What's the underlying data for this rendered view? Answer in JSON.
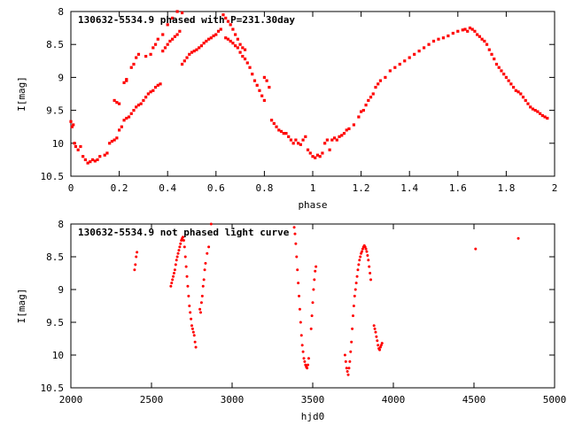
{
  "chart_data": [
    {
      "type": "scatter",
      "title": "130632-5534.9 phased with P=231.30day",
      "xlabel": "phase",
      "ylabel": "I[mag]",
      "xlim": [
        0,
        2
      ],
      "ylim": [
        8,
        10.5
      ],
      "y_inverted": true,
      "grid": false,
      "marker_color": "#ff0000",
      "xticks": [
        "0",
        "0.2",
        "0.4",
        "0.6",
        "0.8",
        "1",
        "1.2",
        "1.4",
        "1.6",
        "1.8",
        "2"
      ],
      "yticks": [
        "8",
        "8.5",
        "9",
        "9.5",
        "10",
        "10.5"
      ],
      "points": [
        [
          0.0,
          9.67
        ],
        [
          0.005,
          9.75
        ],
        [
          0.01,
          9.72
        ],
        [
          0.015,
          10.0
        ],
        [
          0.02,
          10.05
        ],
        [
          0.03,
          10.1
        ],
        [
          0.04,
          10.05
        ],
        [
          0.05,
          10.2
        ],
        [
          0.06,
          10.25
        ],
        [
          0.07,
          10.3
        ],
        [
          0.08,
          10.28
        ],
        [
          0.09,
          10.25
        ],
        [
          0.1,
          10.27
        ],
        [
          0.11,
          10.25
        ],
        [
          0.12,
          10.2
        ],
        [
          0.14,
          10.18
        ],
        [
          0.15,
          10.15
        ],
        [
          0.16,
          10.0
        ],
        [
          0.17,
          9.97
        ],
        [
          0.18,
          9.95
        ],
        [
          0.19,
          9.92
        ],
        [
          0.18,
          9.35
        ],
        [
          0.19,
          9.38
        ],
        [
          0.2,
          9.4
        ],
        [
          0.2,
          9.8
        ],
        [
          0.21,
          9.75
        ],
        [
          0.22,
          9.65
        ],
        [
          0.23,
          9.62
        ],
        [
          0.22,
          9.08
        ],
        [
          0.23,
          9.05
        ],
        [
          0.23,
          9.03
        ],
        [
          0.24,
          9.6
        ],
        [
          0.25,
          9.55
        ],
        [
          0.26,
          9.5
        ],
        [
          0.25,
          8.85
        ],
        [
          0.26,
          8.8
        ],
        [
          0.27,
          9.45
        ],
        [
          0.28,
          9.42
        ],
        [
          0.27,
          8.7
        ],
        [
          0.28,
          8.65
        ],
        [
          0.29,
          9.4
        ],
        [
          0.3,
          9.35
        ],
        [
          0.31,
          9.3
        ],
        [
          0.32,
          9.25
        ],
        [
          0.33,
          9.22
        ],
        [
          0.34,
          9.2
        ],
        [
          0.35,
          9.15
        ],
        [
          0.36,
          9.12
        ],
        [
          0.37,
          9.1
        ],
        [
          0.31,
          8.68
        ],
        [
          0.33,
          8.65
        ],
        [
          0.34,
          8.55
        ],
        [
          0.35,
          8.5
        ],
        [
          0.36,
          8.42
        ],
        [
          0.38,
          8.35
        ],
        [
          0.4,
          8.2
        ],
        [
          0.42,
          8.1
        ],
        [
          0.44,
          8.0
        ],
        [
          0.38,
          8.6
        ],
        [
          0.39,
          8.55
        ],
        [
          0.4,
          8.5
        ],
        [
          0.41,
          8.45
        ],
        [
          0.42,
          8.42
        ],
        [
          0.43,
          8.38
        ],
        [
          0.44,
          8.35
        ],
        [
          0.45,
          8.3
        ],
        [
          0.46,
          8.02
        ],
        [
          0.46,
          8.8
        ],
        [
          0.47,
          8.75
        ],
        [
          0.48,
          8.7
        ],
        [
          0.49,
          8.65
        ],
        [
          0.5,
          8.62
        ],
        [
          0.51,
          8.6
        ],
        [
          0.52,
          8.58
        ],
        [
          0.53,
          8.55
        ],
        [
          0.54,
          8.52
        ],
        [
          0.55,
          8.48
        ],
        [
          0.56,
          8.45
        ],
        [
          0.57,
          8.42
        ],
        [
          0.58,
          8.4
        ],
        [
          0.59,
          8.37
        ],
        [
          0.6,
          8.35
        ],
        [
          0.61,
          8.3
        ],
        [
          0.62,
          8.27
        ],
        [
          0.63,
          8.05
        ],
        [
          0.64,
          8.1
        ],
        [
          0.65,
          8.15
        ],
        [
          0.66,
          8.2
        ],
        [
          0.67,
          8.27
        ],
        [
          0.68,
          8.35
        ],
        [
          0.69,
          8.42
        ],
        [
          0.7,
          8.5
        ],
        [
          0.71,
          8.55
        ],
        [
          0.72,
          8.58
        ],
        [
          0.64,
          8.4
        ],
        [
          0.65,
          8.42
        ],
        [
          0.66,
          8.45
        ],
        [
          0.67,
          8.48
        ],
        [
          0.68,
          8.52
        ],
        [
          0.69,
          8.55
        ],
        [
          0.7,
          8.62
        ],
        [
          0.71,
          8.68
        ],
        [
          0.72,
          8.72
        ],
        [
          0.73,
          8.78
        ],
        [
          0.74,
          8.85
        ],
        [
          0.75,
          8.95
        ],
        [
          0.76,
          9.05
        ],
        [
          0.77,
          9.12
        ],
        [
          0.78,
          9.2
        ],
        [
          0.79,
          9.28
        ],
        [
          0.8,
          9.35
        ],
        [
          0.8,
          9.0
        ],
        [
          0.81,
          9.05
        ],
        [
          0.82,
          9.15
        ],
        [
          0.83,
          9.65
        ],
        [
          0.84,
          9.7
        ],
        [
          0.85,
          9.75
        ],
        [
          0.86,
          9.8
        ],
        [
          0.87,
          9.82
        ],
        [
          0.88,
          9.85
        ],
        [
          0.89,
          9.85
        ],
        [
          0.9,
          9.9
        ],
        [
          0.91,
          9.95
        ],
        [
          0.92,
          10.0
        ],
        [
          0.93,
          9.95
        ],
        [
          0.94,
          10.0
        ],
        [
          0.95,
          10.02
        ],
        [
          0.96,
          9.95
        ],
        [
          0.97,
          9.9
        ],
        [
          0.98,
          10.1
        ],
        [
          0.99,
          10.15
        ],
        [
          1.0,
          10.2
        ],
        [
          1.01,
          10.22
        ],
        [
          1.02,
          10.18
        ],
        [
          1.03,
          10.2
        ],
        [
          1.04,
          10.15
        ],
        [
          1.05,
          10.0
        ],
        [
          1.06,
          9.95
        ],
        [
          1.07,
          10.1
        ],
        [
          1.08,
          9.95
        ],
        [
          1.09,
          9.92
        ],
        [
          1.1,
          9.95
        ],
        [
          1.11,
          9.9
        ],
        [
          1.12,
          9.88
        ],
        [
          1.13,
          9.85
        ],
        [
          1.14,
          9.8
        ],
        [
          1.15,
          9.78
        ],
        [
          1.17,
          9.72
        ],
        [
          1.19,
          9.6
        ],
        [
          1.2,
          9.52
        ],
        [
          1.21,
          9.5
        ],
        [
          1.22,
          9.42
        ],
        [
          1.23,
          9.35
        ],
        [
          1.24,
          9.3
        ],
        [
          1.25,
          9.25
        ],
        [
          1.26,
          9.15
        ],
        [
          1.27,
          9.1
        ],
        [
          1.28,
          9.05
        ],
        [
          1.3,
          9.0
        ],
        [
          1.32,
          8.9
        ],
        [
          1.34,
          8.85
        ],
        [
          1.36,
          8.8
        ],
        [
          1.38,
          8.75
        ],
        [
          1.4,
          8.7
        ],
        [
          1.42,
          8.65
        ],
        [
          1.44,
          8.6
        ],
        [
          1.46,
          8.55
        ],
        [
          1.48,
          8.5
        ],
        [
          1.5,
          8.45
        ],
        [
          1.52,
          8.42
        ],
        [
          1.54,
          8.4
        ],
        [
          1.56,
          8.37
        ],
        [
          1.58,
          8.33
        ],
        [
          1.6,
          8.3
        ],
        [
          1.62,
          8.28
        ],
        [
          1.63,
          8.27
        ],
        [
          1.64,
          8.3
        ],
        [
          1.65,
          8.25
        ],
        [
          1.66,
          8.27
        ],
        [
          1.67,
          8.3
        ],
        [
          1.68,
          8.35
        ],
        [
          1.69,
          8.38
        ],
        [
          1.7,
          8.42
        ],
        [
          1.71,
          8.45
        ],
        [
          1.72,
          8.5
        ],
        [
          1.73,
          8.58
        ],
        [
          1.74,
          8.65
        ],
        [
          1.75,
          8.72
        ],
        [
          1.76,
          8.8
        ],
        [
          1.77,
          8.85
        ],
        [
          1.78,
          8.9
        ],
        [
          1.79,
          8.95
        ],
        [
          1.8,
          9.0
        ],
        [
          1.81,
          9.05
        ],
        [
          1.82,
          9.1
        ],
        [
          1.83,
          9.15
        ],
        [
          1.84,
          9.2
        ],
        [
          1.85,
          9.22
        ],
        [
          1.86,
          9.25
        ],
        [
          1.87,
          9.3
        ],
        [
          1.88,
          9.35
        ],
        [
          1.89,
          9.4
        ],
        [
          1.9,
          9.45
        ],
        [
          1.91,
          9.48
        ],
        [
          1.92,
          9.5
        ],
        [
          1.93,
          9.52
        ],
        [
          1.94,
          9.55
        ],
        [
          1.95,
          9.58
        ],
        [
          1.96,
          9.6
        ],
        [
          1.97,
          9.62
        ]
      ]
    },
    {
      "type": "scatter",
      "title": "130632-5534.9 not phased light curve",
      "xlabel": "hjd0",
      "ylabel": "I[mag]",
      "xlim": [
        2000,
        5000
      ],
      "ylim": [
        8,
        10.5
      ],
      "y_inverted": true,
      "grid": false,
      "marker_color": "#ff0000",
      "xticks": [
        "2000",
        "2500",
        "3000",
        "3500",
        "4000",
        "4500",
        "5000"
      ],
      "yticks": [
        "8",
        "8.5",
        "9",
        "9.5",
        "10",
        "10.5"
      ],
      "points": [
        [
          2395,
          8.7
        ],
        [
          2400,
          8.62
        ],
        [
          2405,
          8.5
        ],
        [
          2410,
          8.43
        ],
        [
          2620,
          8.95
        ],
        [
          2625,
          8.9
        ],
        [
          2630,
          8.85
        ],
        [
          2635,
          8.8
        ],
        [
          2640,
          8.75
        ],
        [
          2645,
          8.7
        ],
        [
          2650,
          8.62
        ],
        [
          2655,
          8.55
        ],
        [
          2660,
          8.5
        ],
        [
          2665,
          8.45
        ],
        [
          2670,
          8.4
        ],
        [
          2675,
          8.35
        ],
        [
          2680,
          8.3
        ],
        [
          2685,
          8.25
        ],
        [
          2690,
          8.22
        ],
        [
          2695,
          8.2
        ],
        [
          2700,
          8.25
        ],
        [
          2705,
          8.35
        ],
        [
          2710,
          8.5
        ],
        [
          2715,
          8.65
        ],
        [
          2720,
          8.8
        ],
        [
          2725,
          8.95
        ],
        [
          2730,
          9.1
        ],
        [
          2735,
          9.25
        ],
        [
          2740,
          9.35
        ],
        [
          2745,
          9.45
        ],
        [
          2750,
          9.55
        ],
        [
          2755,
          9.6
        ],
        [
          2760,
          9.65
        ],
        [
          2765,
          9.7
        ],
        [
          2770,
          9.8
        ],
        [
          2775,
          9.88
        ],
        [
          2800,
          9.3
        ],
        [
          2805,
          9.35
        ],
        [
          2810,
          9.2
        ],
        [
          2815,
          9.1
        ],
        [
          2820,
          8.95
        ],
        [
          2825,
          8.85
        ],
        [
          2830,
          8.7
        ],
        [
          2835,
          8.6
        ],
        [
          2845,
          8.45
        ],
        [
          2855,
          8.35
        ],
        [
          2870,
          8.0
        ],
        [
          3385,
          8.05
        ],
        [
          3390,
          8.15
        ],
        [
          3395,
          8.3
        ],
        [
          3400,
          8.5
        ],
        [
          3405,
          8.7
        ],
        [
          3410,
          8.9
        ],
        [
          3415,
          9.1
        ],
        [
          3420,
          9.3
        ],
        [
          3425,
          9.5
        ],
        [
          3430,
          9.7
        ],
        [
          3435,
          9.85
        ],
        [
          3440,
          9.95
        ],
        [
          3445,
          10.05
        ],
        [
          3450,
          10.1
        ],
        [
          3455,
          10.15
        ],
        [
          3460,
          10.18
        ],
        [
          3465,
          10.2
        ],
        [
          3470,
          10.15
        ],
        [
          3475,
          10.05
        ],
        [
          3490,
          9.6
        ],
        [
          3495,
          9.4
        ],
        [
          3500,
          9.2
        ],
        [
          3505,
          9.0
        ],
        [
          3510,
          8.85
        ],
        [
          3515,
          8.72
        ],
        [
          3520,
          8.65
        ],
        [
          3700,
          10.0
        ],
        [
          3705,
          10.1
        ],
        [
          3710,
          10.2
        ],
        [
          3715,
          10.25
        ],
        [
          3720,
          10.3
        ],
        [
          3725,
          10.2
        ],
        [
          3730,
          10.1
        ],
        [
          3735,
          9.95
        ],
        [
          3740,
          9.8
        ],
        [
          3745,
          9.6
        ],
        [
          3750,
          9.4
        ],
        [
          3755,
          9.25
        ],
        [
          3760,
          9.1
        ],
        [
          3765,
          9.0
        ],
        [
          3770,
          8.9
        ],
        [
          3775,
          8.8
        ],
        [
          3780,
          8.7
        ],
        [
          3785,
          8.62
        ],
        [
          3790,
          8.55
        ],
        [
          3795,
          8.5
        ],
        [
          3800,
          8.45
        ],
        [
          3805,
          8.42
        ],
        [
          3810,
          8.38
        ],
        [
          3815,
          8.35
        ],
        [
          3820,
          8.33
        ],
        [
          3825,
          8.35
        ],
        [
          3830,
          8.38
        ],
        [
          3835,
          8.42
        ],
        [
          3840,
          8.48
        ],
        [
          3845,
          8.55
        ],
        [
          3850,
          8.65
        ],
        [
          3855,
          8.75
        ],
        [
          3860,
          8.85
        ],
        [
          3880,
          9.55
        ],
        [
          3885,
          9.6
        ],
        [
          3890,
          9.65
        ],
        [
          3895,
          9.72
        ],
        [
          3900,
          9.78
        ],
        [
          3905,
          9.85
        ],
        [
          3910,
          9.9
        ],
        [
          3915,
          9.92
        ],
        [
          3920,
          9.88
        ],
        [
          3925,
          9.85
        ],
        [
          3930,
          9.82
        ],
        [
          4510,
          8.38
        ],
        [
          4775,
          8.22
        ]
      ]
    }
  ]
}
